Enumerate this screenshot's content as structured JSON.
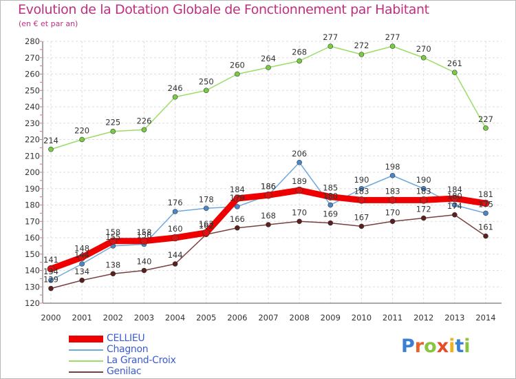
{
  "header": {
    "title": "Evolution de la Dotation Globale de Fonctionnement par Habitant",
    "subtitle": "(en € et par an)"
  },
  "logo": {
    "text": "Proxiti",
    "letter_colors": [
      "#3a7fd6",
      "#e8622a",
      "#8ac43f",
      "#e84a2a",
      "#f0b020",
      "#3a7fd6",
      "#8ac43f"
    ]
  },
  "chart_data": {
    "type": "line",
    "title": "Evolution de la Dotation Globale de Fonctionnement par Habitant",
    "subtitle": "(en € et par an)",
    "x": [
      "2000",
      "2001",
      "2002",
      "2003",
      "2004",
      "2005",
      "2006",
      "2007",
      "2008",
      "2009",
      "2010",
      "2011",
      "2012",
      "2013",
      "2014"
    ],
    "ylim": [
      120,
      280
    ],
    "yticks": [
      120,
      130,
      140,
      150,
      160,
      170,
      180,
      190,
      200,
      210,
      220,
      230,
      240,
      250,
      260,
      270,
      280
    ],
    "grid": true,
    "legend_position": "bottom-left",
    "series": [
      {
        "name": "CELLIEU",
        "color": "#ee0000",
        "marker": "#dd1111",
        "emphasis": true,
        "values": [
          141,
          148,
          158,
          158,
          160,
          163,
          184,
          186,
          189,
          185,
          183,
          183,
          183,
          184,
          181
        ]
      },
      {
        "name": "Chagnon",
        "color": "#6fa8dc",
        "marker": "#4a86c8",
        "values": [
          134,
          144,
          155,
          156,
          176,
          178,
          179,
          186,
          206,
          180,
          190,
          198,
          190,
          180,
          175
        ]
      },
      {
        "name": "La Grand-Croix",
        "color": "#99dd66",
        "marker": "#77cc44",
        "values": [
          214,
          220,
          225,
          226,
          246,
          250,
          260,
          264,
          268,
          277,
          272,
          277,
          270,
          261,
          227
        ]
      },
      {
        "name": "Genilac",
        "color": "#7a3e3e",
        "marker": "#5a2020",
        "values": [
          129,
          134,
          138,
          140,
          144,
          162,
          166,
          168,
          170,
          169,
          167,
          170,
          172,
          174,
          161
        ]
      }
    ]
  }
}
